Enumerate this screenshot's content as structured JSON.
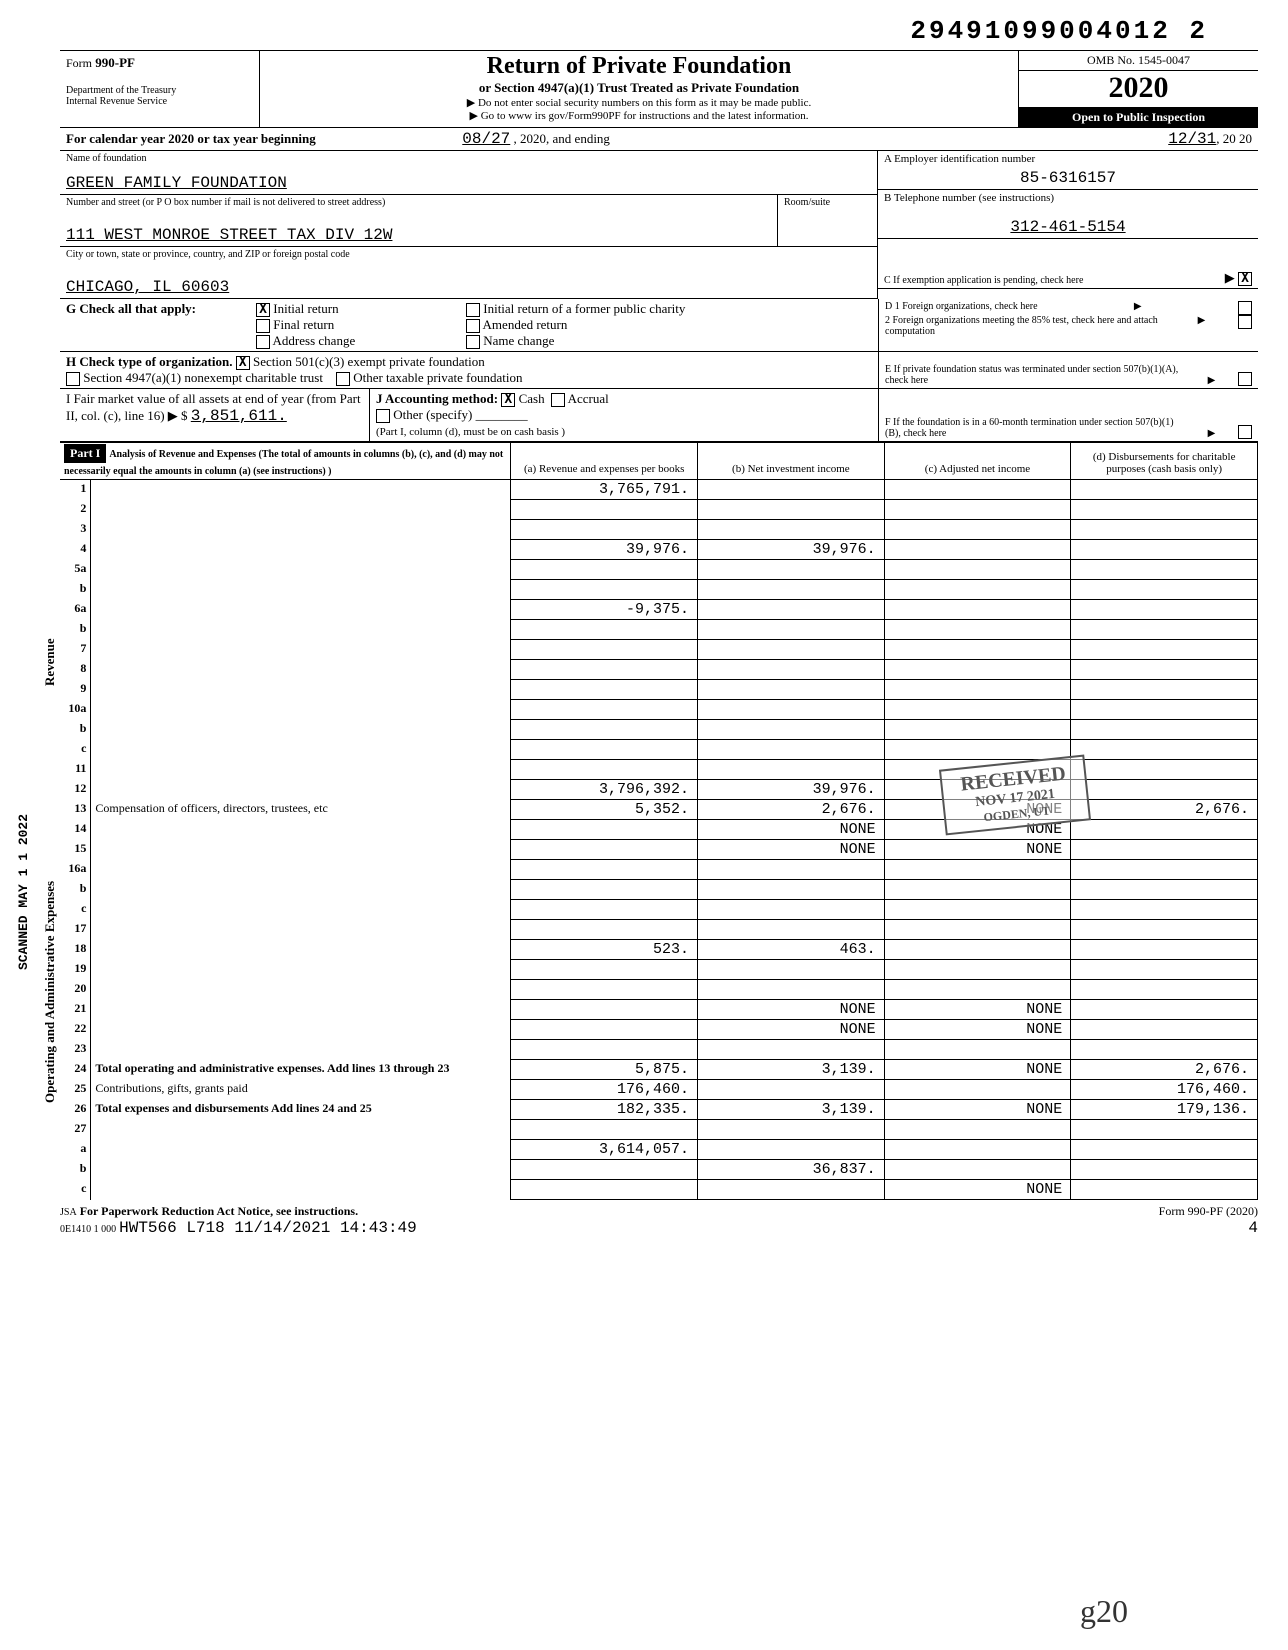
{
  "doc_id": "29491099004012 2",
  "form": {
    "prefix": "Form",
    "number": "990-PF",
    "dept": "Department of the Treasury",
    "irs": "Internal Revenue Service",
    "title": "Return of Private Foundation",
    "subtitle": "or Section 4947(a)(1) Trust Treated as Private Foundation",
    "note1": "Do not enter social security numbers on this form as it may be made public.",
    "note2": "Go to www irs gov/Form990PF for instructions and the latest information.",
    "omb": "OMB No. 1545-0047",
    "year": "2020",
    "inspect": "Open to Public Inspection"
  },
  "period": {
    "label": "For calendar year 2020 or tax year beginning",
    "begin": "08/27",
    "mid": ", 2020, and ending",
    "end": "12/31",
    "end_year": ", 20 20"
  },
  "id": {
    "name_label": "Name of foundation",
    "name": "GREEN FAMILY FOUNDATION",
    "addr_label": "Number and street (or P O  box number if mail is not delivered to street address)",
    "addr": "111 WEST MONROE STREET TAX DIV 12W",
    "city_label": "City or town, state or province, country, and ZIP or foreign postal code",
    "city": "CHICAGO, IL 60603",
    "room_label": "Room/suite",
    "ein_label": "A  Employer identification number",
    "ein": "85-6316157",
    "tel_label": "B  Telephone number (see instructions)",
    "tel": "312-461-5154",
    "c_label": "C  If exemption application is pending, check here",
    "c_checked": "X"
  },
  "g": {
    "label": "G  Check all that apply:",
    "opts": [
      "Initial return",
      "Final return",
      "Address change",
      "Initial return of a former public charity",
      "Amended return",
      "Name change"
    ],
    "initial_checked": "X"
  },
  "h": {
    "label": "H  Check type of organization.",
    "opt1": "Section 501(c)(3) exempt private foundation",
    "opt1_checked": "X",
    "opt2": "Section 4947(a)(1) nonexempt charitable trust",
    "opt3": "Other taxable private foundation"
  },
  "i": {
    "label": "I   Fair market value of all assets at end of year (from Part II, col. (c), line 16) ▶ $",
    "value": "3,851,611."
  },
  "j": {
    "label": "J  Accounting method:",
    "cash": "Cash",
    "cash_checked": "X",
    "accrual": "Accrual",
    "other": "Other (specify)",
    "note": "(Part I, column (d), must be on cash basis )"
  },
  "right_checks": {
    "d1": "D  1  Foreign organizations, check here",
    "d2": "2  Foreign organizations meeting the 85% test, check here and attach computation",
    "e": "E   If private foundation status was terminated under section 507(b)(1)(A), check here",
    "f": "F   If the foundation is in a 60-month termination under section 507(b)(1)(B), check here"
  },
  "part1": {
    "title": "Part I",
    "desc": "Analysis of Revenue and Expenses (The total of amounts in columns (b), (c), and (d) may not necessarily equal the amounts in column (a) (see instructions) )",
    "cols": {
      "a": "(a) Revenue and expenses per books",
      "b": "(b) Net investment income",
      "c": "(c) Adjusted net income",
      "d": "(d) Disbursements for charitable purposes (cash basis only)"
    }
  },
  "side_labels": {
    "revenue": "Revenue",
    "expenses": "Operating and Administrative Expenses",
    "scanned": "SCANNED MAY 1 1 2022"
  },
  "rows": [
    {
      "n": "1",
      "d": "",
      "a": "3,765,791.",
      "b": "",
      "c": ""
    },
    {
      "n": "2",
      "d": "",
      "a": "",
      "b": "",
      "c": ""
    },
    {
      "n": "3",
      "d": "",
      "a": "",
      "b": "",
      "c": ""
    },
    {
      "n": "4",
      "d": "",
      "a": "39,976.",
      "b": "39,976.",
      "c": ""
    },
    {
      "n": "5a",
      "d": "",
      "a": "",
      "b": "",
      "c": ""
    },
    {
      "n": "b",
      "d": "",
      "a": "",
      "b": "",
      "c": ""
    },
    {
      "n": "6a",
      "d": "",
      "a": "-9,375.",
      "b": "",
      "c": ""
    },
    {
      "n": "b",
      "d": "",
      "a": "",
      "b": "",
      "c": ""
    },
    {
      "n": "7",
      "d": "",
      "a": "",
      "b": "",
      "c": ""
    },
    {
      "n": "8",
      "d": "",
      "a": "",
      "b": "",
      "c": ""
    },
    {
      "n": "9",
      "d": "",
      "a": "",
      "b": "",
      "c": ""
    },
    {
      "n": "10a",
      "d": "",
      "a": "",
      "b": "",
      "c": ""
    },
    {
      "n": "b",
      "d": "",
      "a": "",
      "b": "",
      "c": ""
    },
    {
      "n": "c",
      "d": "",
      "a": "",
      "b": "",
      "c": ""
    },
    {
      "n": "11",
      "d": "",
      "a": "",
      "b": "",
      "c": ""
    },
    {
      "n": "12",
      "d": "",
      "a": "3,796,392.",
      "b": "39,976.",
      "c": ""
    },
    {
      "n": "13",
      "d": "2,676.",
      "a": "5,352.",
      "b": "2,676.",
      "c": "NONE"
    },
    {
      "n": "14",
      "d": "",
      "a": "",
      "b": "NONE",
      "c": "NONE"
    },
    {
      "n": "15",
      "d": "",
      "a": "",
      "b": "NONE",
      "c": "NONE"
    },
    {
      "n": "16a",
      "d": "",
      "a": "",
      "b": "",
      "c": ""
    },
    {
      "n": "b",
      "d": "",
      "a": "",
      "b": "",
      "c": ""
    },
    {
      "n": "c",
      "d": "",
      "a": "",
      "b": "",
      "c": ""
    },
    {
      "n": "17",
      "d": "",
      "a": "",
      "b": "",
      "c": ""
    },
    {
      "n": "18",
      "d": "",
      "a": "523.",
      "b": "463.",
      "c": ""
    },
    {
      "n": "19",
      "d": "",
      "a": "",
      "b": "",
      "c": ""
    },
    {
      "n": "20",
      "d": "",
      "a": "",
      "b": "",
      "c": ""
    },
    {
      "n": "21",
      "d": "",
      "a": "",
      "b": "NONE",
      "c": "NONE"
    },
    {
      "n": "22",
      "d": "",
      "a": "",
      "b": "NONE",
      "c": "NONE"
    },
    {
      "n": "23",
      "d": "",
      "a": "",
      "b": "",
      "c": ""
    },
    {
      "n": "24",
      "d": "2,676.",
      "a": "5,875.",
      "b": "3,139.",
      "c": "NONE"
    },
    {
      "n": "25",
      "d": "176,460.",
      "a": "176,460.",
      "b": "",
      "c": ""
    },
    {
      "n": "26",
      "d": "179,136.",
      "a": "182,335.",
      "b": "3,139.",
      "c": "NONE"
    },
    {
      "n": "27",
      "d": "",
      "a": "",
      "b": "",
      "c": ""
    },
    {
      "n": "a",
      "d": "",
      "a": "3,614,057.",
      "b": "",
      "c": ""
    },
    {
      "n": "b",
      "d": "",
      "a": "",
      "b": "36,837.",
      "c": ""
    },
    {
      "n": "c",
      "d": "",
      "a": "",
      "b": "",
      "c": "NONE"
    }
  ],
  "footer": {
    "jsa": "JSA",
    "notice": "For Paperwork Reduction Act Notice, see instructions.",
    "code": "0E1410 1 000",
    "stamp": "HWT566 L718 11/14/2021 14:43:49",
    "formref": "Form 990-PF (2020)",
    "page": "4"
  },
  "stamps": {
    "received": "RECEIVED",
    "received_date": "NOV 17 2021",
    "ogden": "OGDEN, UT"
  }
}
